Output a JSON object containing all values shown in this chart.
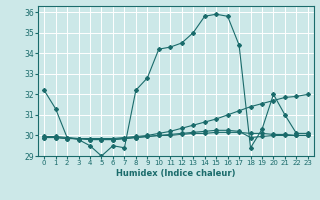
{
  "xlabel": "Humidex (Indice chaleur)",
  "bg_color": "#cce8e8",
  "grid_color": "#ffffff",
  "line_color": "#1a6b6b",
  "xlim": [
    -0.5,
    23.5
  ],
  "ylim": [
    29,
    36.3
  ],
  "xticks": [
    0,
    1,
    2,
    3,
    4,
    5,
    6,
    7,
    8,
    9,
    10,
    11,
    12,
    13,
    14,
    15,
    16,
    17,
    18,
    19,
    20,
    21,
    22,
    23
  ],
  "yticks": [
    29,
    30,
    31,
    32,
    33,
    34,
    35,
    36
  ],
  "lines": [
    {
      "x": [
        0,
        1,
        2,
        3,
        4,
        5,
        6,
        7,
        8,
        9,
        10,
        11,
        12,
        13,
        14,
        15,
        16,
        17,
        18,
        19,
        20,
        21,
        22,
        23
      ],
      "y": [
        32.2,
        31.3,
        29.9,
        29.8,
        29.5,
        29.0,
        29.5,
        29.4,
        32.2,
        32.8,
        34.2,
        34.3,
        34.5,
        35.0,
        35.8,
        35.9,
        35.8,
        34.4,
        29.4,
        30.3,
        32.0,
        31.0,
        30.1,
        30.1
      ]
    },
    {
      "x": [
        0,
        1,
        2,
        3,
        4,
        5,
        6,
        7,
        8,
        9,
        10,
        11,
        12,
        13,
        14,
        15,
        16,
        17,
        18,
        19,
        20,
        21,
        22,
        23
      ],
      "y": [
        29.9,
        29.9,
        29.85,
        29.85,
        29.85,
        29.85,
        29.85,
        29.9,
        29.95,
        30.0,
        30.1,
        30.2,
        30.35,
        30.5,
        30.65,
        30.8,
        31.0,
        31.2,
        31.4,
        31.55,
        31.7,
        31.85,
        31.9,
        32.0
      ]
    },
    {
      "x": [
        0,
        1,
        2,
        3,
        4,
        5,
        6,
        7,
        8,
        9,
        10,
        11,
        12,
        13,
        14,
        15,
        16,
        17,
        18,
        19,
        20,
        21,
        22,
        23
      ],
      "y": [
        29.9,
        29.9,
        29.85,
        29.85,
        29.8,
        29.8,
        29.8,
        29.85,
        29.9,
        29.95,
        30.0,
        30.0,
        30.05,
        30.1,
        30.1,
        30.15,
        30.15,
        30.15,
        30.1,
        30.1,
        30.05,
        30.05,
        30.0,
        30.0
      ]
    },
    {
      "x": [
        0,
        1,
        2,
        3,
        4,
        5,
        6,
        7,
        8,
        9,
        10,
        11,
        12,
        13,
        14,
        15,
        16,
        17,
        18,
        19,
        20,
        21,
        22,
        23
      ],
      "y": [
        29.95,
        29.95,
        29.9,
        29.85,
        29.8,
        29.8,
        29.8,
        29.85,
        29.9,
        29.95,
        30.0,
        30.05,
        30.1,
        30.15,
        30.2,
        30.25,
        30.25,
        30.2,
        29.9,
        29.95,
        30.0,
        30.0,
        30.0,
        30.0
      ]
    }
  ]
}
